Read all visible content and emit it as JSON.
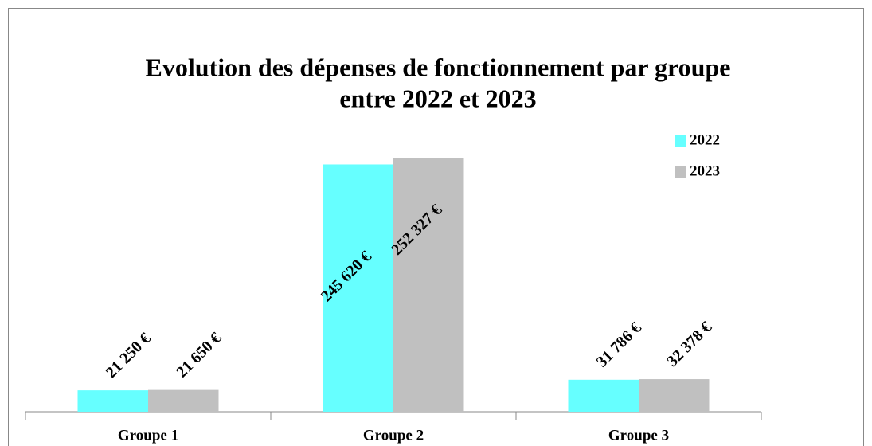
{
  "chart_data": {
    "type": "bar",
    "title": "Evolution des dépenses de fonctionnement par groupe",
    "subtitle": "entre 2022 et 2023",
    "categories": [
      "Groupe 1",
      "Groupe 2",
      "Groupe 3"
    ],
    "series": [
      {
        "name": "2022",
        "color": "#66ffff",
        "values": [
          21250,
          245620,
          31786
        ],
        "value_labels": [
          "21 250 €",
          "245 620 €",
          "31 786 €"
        ]
      },
      {
        "name": "2023",
        "color": "#c0c0c0",
        "values": [
          21650,
          252327,
          32378
        ],
        "value_labels": [
          "21 650 €",
          "252 327 €",
          "32 378 €"
        ]
      }
    ],
    "legend": "upper right"
  }
}
